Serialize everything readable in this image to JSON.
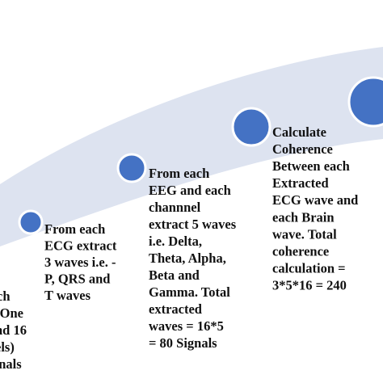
{
  "steps": [
    {
      "lines": [
        "ch",
        "- One",
        "nd 16",
        "els)",
        "gnals"
      ]
    },
    {
      "lines": [
        "From each",
        "ECG extract",
        "3 waves i.e. -",
        "P, QRS and",
        "T waves"
      ]
    },
    {
      "lines": [
        "From each",
        "EEG and each",
        "channnel",
        "extract 5 waves",
        "i.e. Delta,",
        "Theta, Alpha,",
        "Beta and",
        "Gamma. Total",
        "extracted",
        "waves = 16*5",
        "= 80 Signals"
      ]
    },
    {
      "lines": [
        "Calculate",
        "Coherence",
        "Between each",
        "Extracted",
        "ECG wave and",
        "each Brain",
        "wave. Total",
        "coherence",
        "calculation  =",
        "3*5*16 = 240"
      ]
    }
  ]
}
